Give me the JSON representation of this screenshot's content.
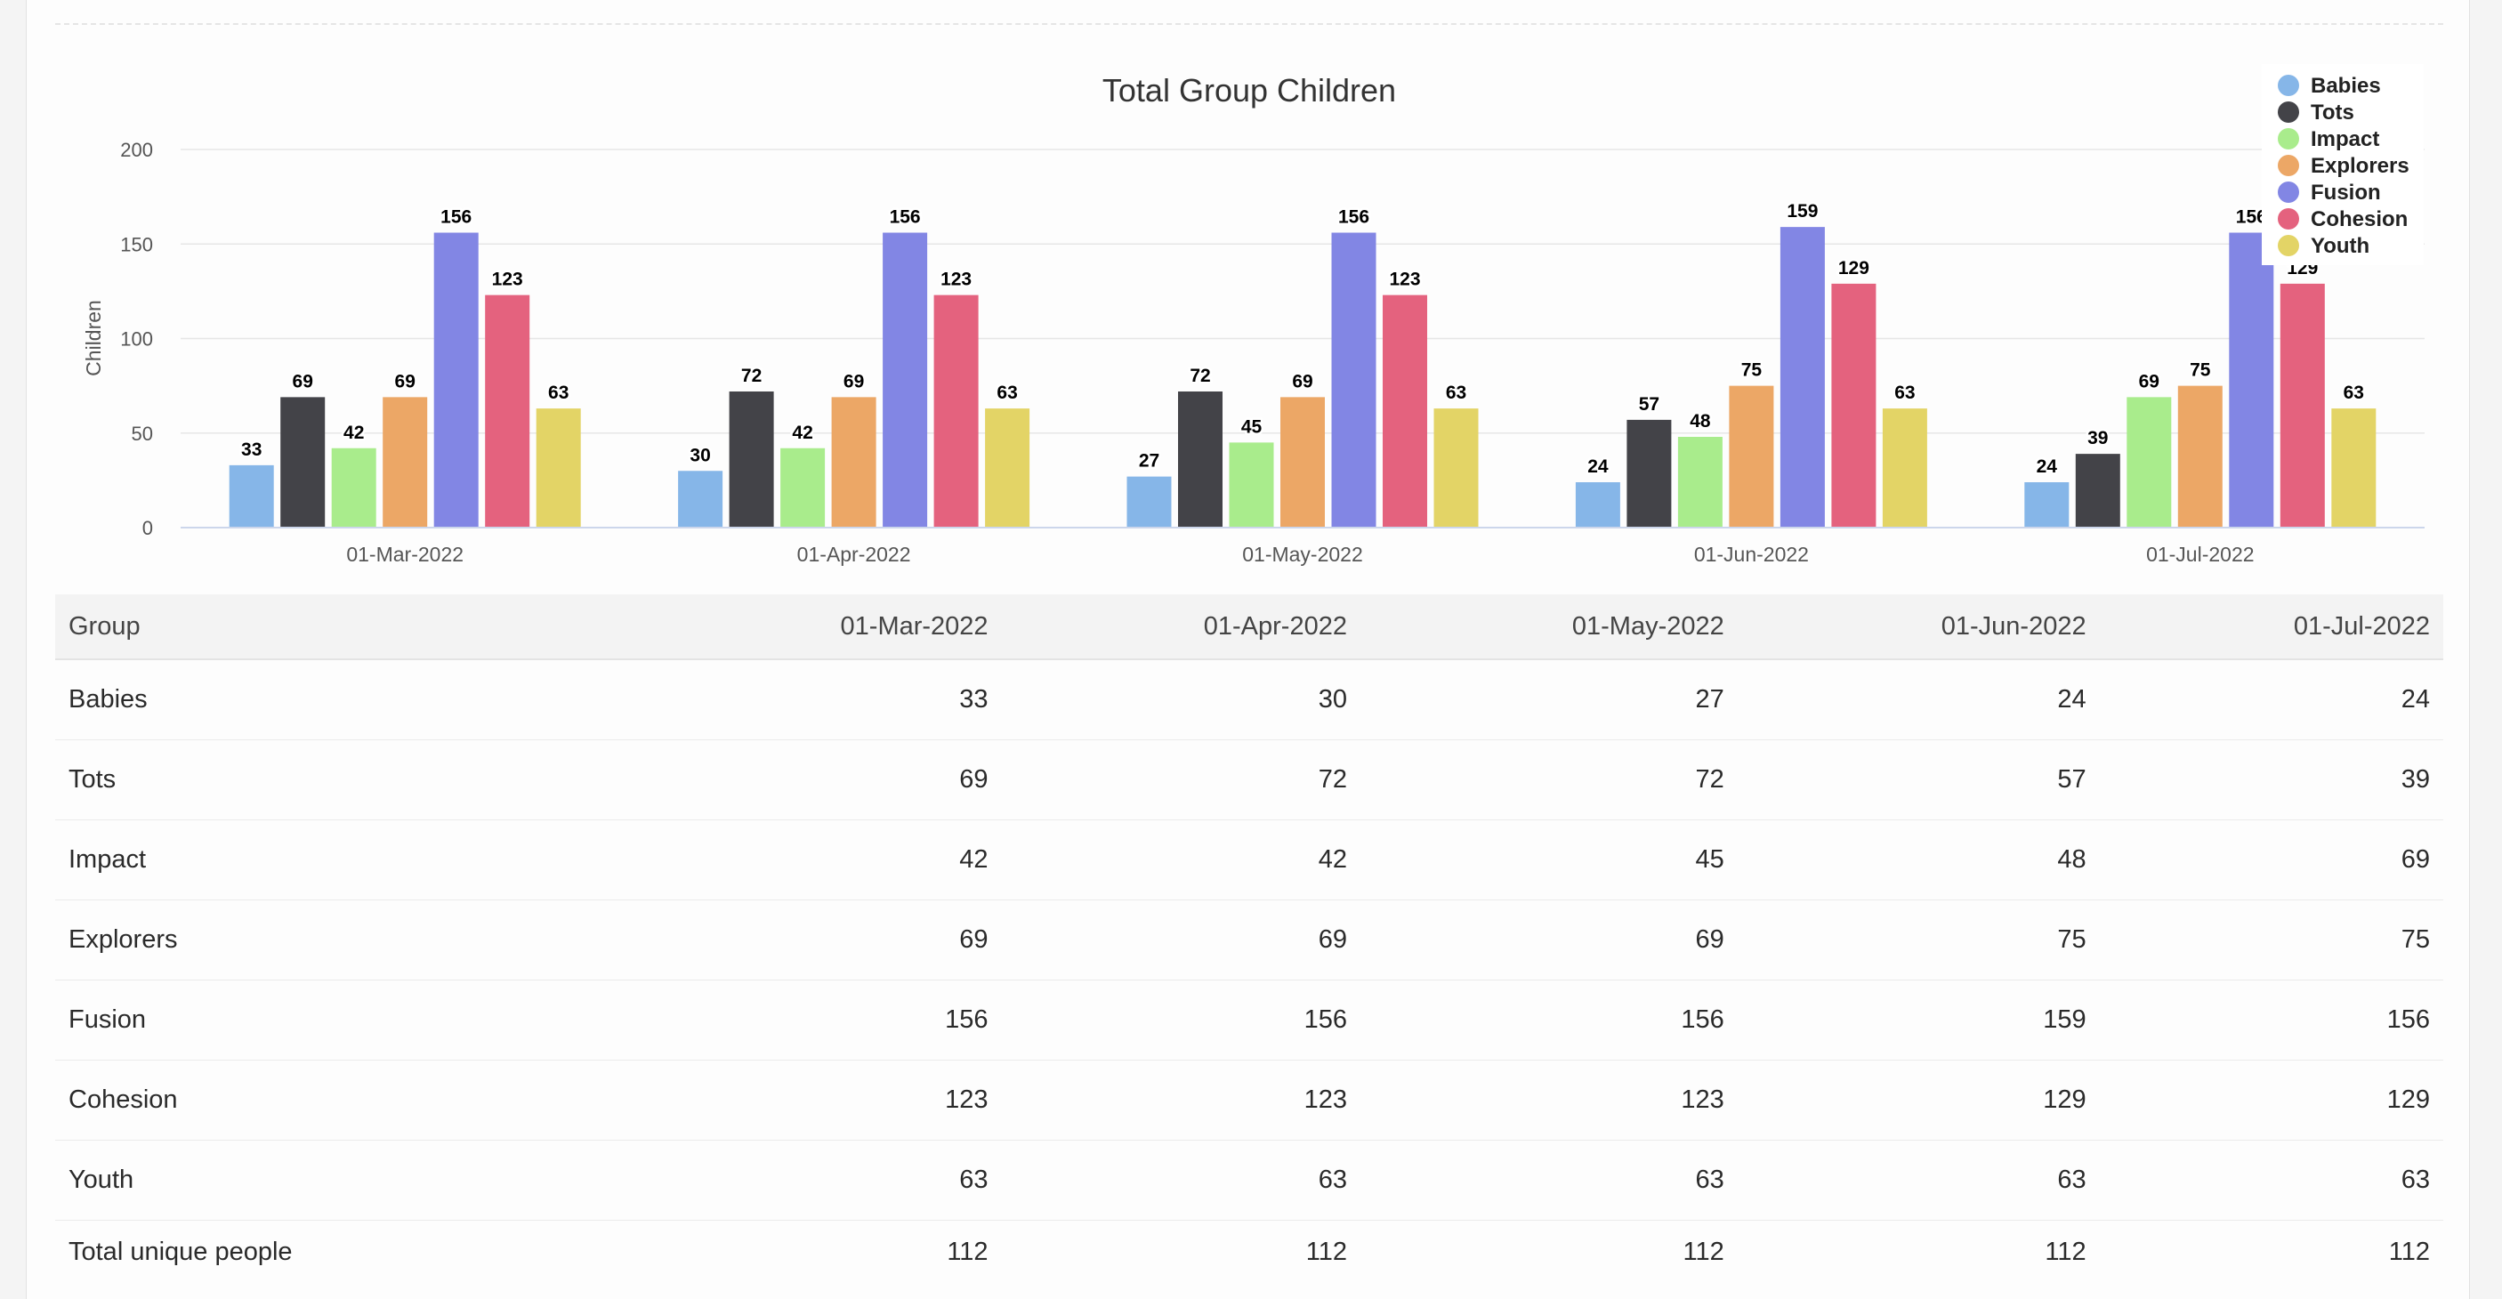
{
  "chart_data": {
    "type": "bar",
    "title": "Total Group Children",
    "xlabel": "",
    "ylabel": "Children",
    "ylim": [
      0,
      200
    ],
    "yticks": [
      0,
      50,
      100,
      150,
      200
    ],
    "categories": [
      "01-Mar-2022",
      "01-Apr-2022",
      "01-May-2022",
      "01-Jun-2022",
      "01-Jul-2022"
    ],
    "grid": true,
    "legend_position": "top-right",
    "series": [
      {
        "name": "Babies",
        "color": "#86b6e8",
        "values": [
          33,
          30,
          27,
          24,
          24
        ]
      },
      {
        "name": "Tots",
        "color": "#434348",
        "values": [
          69,
          72,
          72,
          57,
          39
        ]
      },
      {
        "name": "Impact",
        "color": "#a9ec8c",
        "values": [
          42,
          42,
          45,
          48,
          69
        ]
      },
      {
        "name": "Explorers",
        "color": "#eca766",
        "values": [
          69,
          69,
          69,
          75,
          75
        ]
      },
      {
        "name": "Fusion",
        "color": "#8286e4",
        "values": [
          156,
          156,
          156,
          159,
          156
        ]
      },
      {
        "name": "Cohesion",
        "color": "#e4627e",
        "values": [
          123,
          123,
          123,
          129,
          129
        ]
      },
      {
        "name": "Youth",
        "color": "#e3d466",
        "values": [
          63,
          63,
          63,
          63,
          63
        ]
      }
    ]
  },
  "table": {
    "headers": [
      "Group",
      "01-Mar-2022",
      "01-Apr-2022",
      "01-May-2022",
      "01-Jun-2022",
      "01-Jul-2022"
    ],
    "rows": [
      [
        "Babies",
        "33",
        "30",
        "27",
        "24",
        "24"
      ],
      [
        "Tots",
        "69",
        "72",
        "72",
        "57",
        "39"
      ],
      [
        "Impact",
        "42",
        "42",
        "45",
        "48",
        "69"
      ],
      [
        "Explorers",
        "69",
        "69",
        "69",
        "75",
        "75"
      ],
      [
        "Fusion",
        "156",
        "156",
        "156",
        "159",
        "156"
      ],
      [
        "Cohesion",
        "123",
        "123",
        "123",
        "129",
        "129"
      ],
      [
        "Youth",
        "63",
        "63",
        "63",
        "63",
        "63"
      ],
      [
        "Total unique people",
        "112",
        "112",
        "112",
        "112",
        "112"
      ]
    ]
  }
}
